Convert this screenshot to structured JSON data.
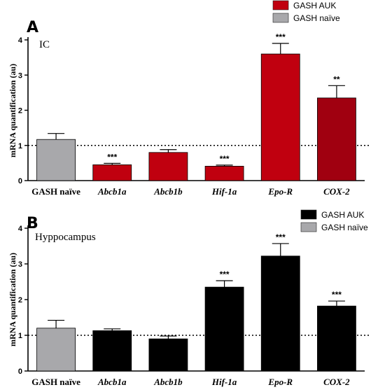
{
  "chart_data": [
    {
      "type": "bar",
      "panel": "A",
      "region": "IC",
      "ylabel": "mRNA quantification (au)",
      "ylim": [
        0,
        4
      ],
      "yticks": [
        0,
        1,
        2,
        3,
        4
      ],
      "reference_line": 1,
      "categories": [
        "GASH naïve",
        "Abcb1a",
        "Abcb1b",
        "Hif-1a",
        "Epo-R",
        "COX-2"
      ],
      "italic_categories": [
        false,
        true,
        true,
        true,
        true,
        true
      ],
      "values": [
        1.17,
        0.45,
        0.8,
        0.41,
        3.6,
        2.35
      ],
      "errors": [
        0.17,
        0.04,
        0.08,
        0.03,
        0.3,
        0.35
      ],
      "significance": [
        "",
        "***",
        "",
        "***",
        "***",
        "**"
      ],
      "bar_colors": [
        "#a8a8ab",
        "#c0000f",
        "#c0000f",
        "#c0000f",
        "#c0000f",
        "#a00010"
      ],
      "legend": {
        "position": "top-right",
        "entries": [
          {
            "label": "GASH AUK",
            "color": "#c0000f"
          },
          {
            "label": "GASH naïve",
            "color": "#a8a8ab"
          }
        ]
      }
    },
    {
      "type": "bar",
      "panel": "B",
      "region": "Hyppocampus",
      "ylabel": "mRNA quantification (au)",
      "ylim": [
        0,
        4
      ],
      "yticks": [
        0,
        1,
        2,
        3,
        4
      ],
      "reference_line": 1,
      "categories": [
        "GASH naïve",
        "Abcb1a",
        "Abcb1b",
        "Hif-1a",
        "Epo-R",
        "COX-2"
      ],
      "italic_categories": [
        false,
        true,
        true,
        true,
        true,
        true
      ],
      "values": [
        1.2,
        1.13,
        0.9,
        2.35,
        3.22,
        1.82
      ],
      "errors": [
        0.22,
        0.05,
        0.08,
        0.18,
        0.35,
        0.14
      ],
      "significance": [
        "",
        "",
        "",
        "***",
        "***",
        "***"
      ],
      "bar_colors": [
        "#a8a8ab",
        "#000000",
        "#000000",
        "#000000",
        "#000000",
        "#000000"
      ],
      "legend": {
        "position": "top-right",
        "entries": [
          {
            "label": "GASH AUK",
            "color": "#000000"
          },
          {
            "label": "GASH naïve",
            "color": "#a8a8ab"
          }
        ]
      }
    }
  ]
}
